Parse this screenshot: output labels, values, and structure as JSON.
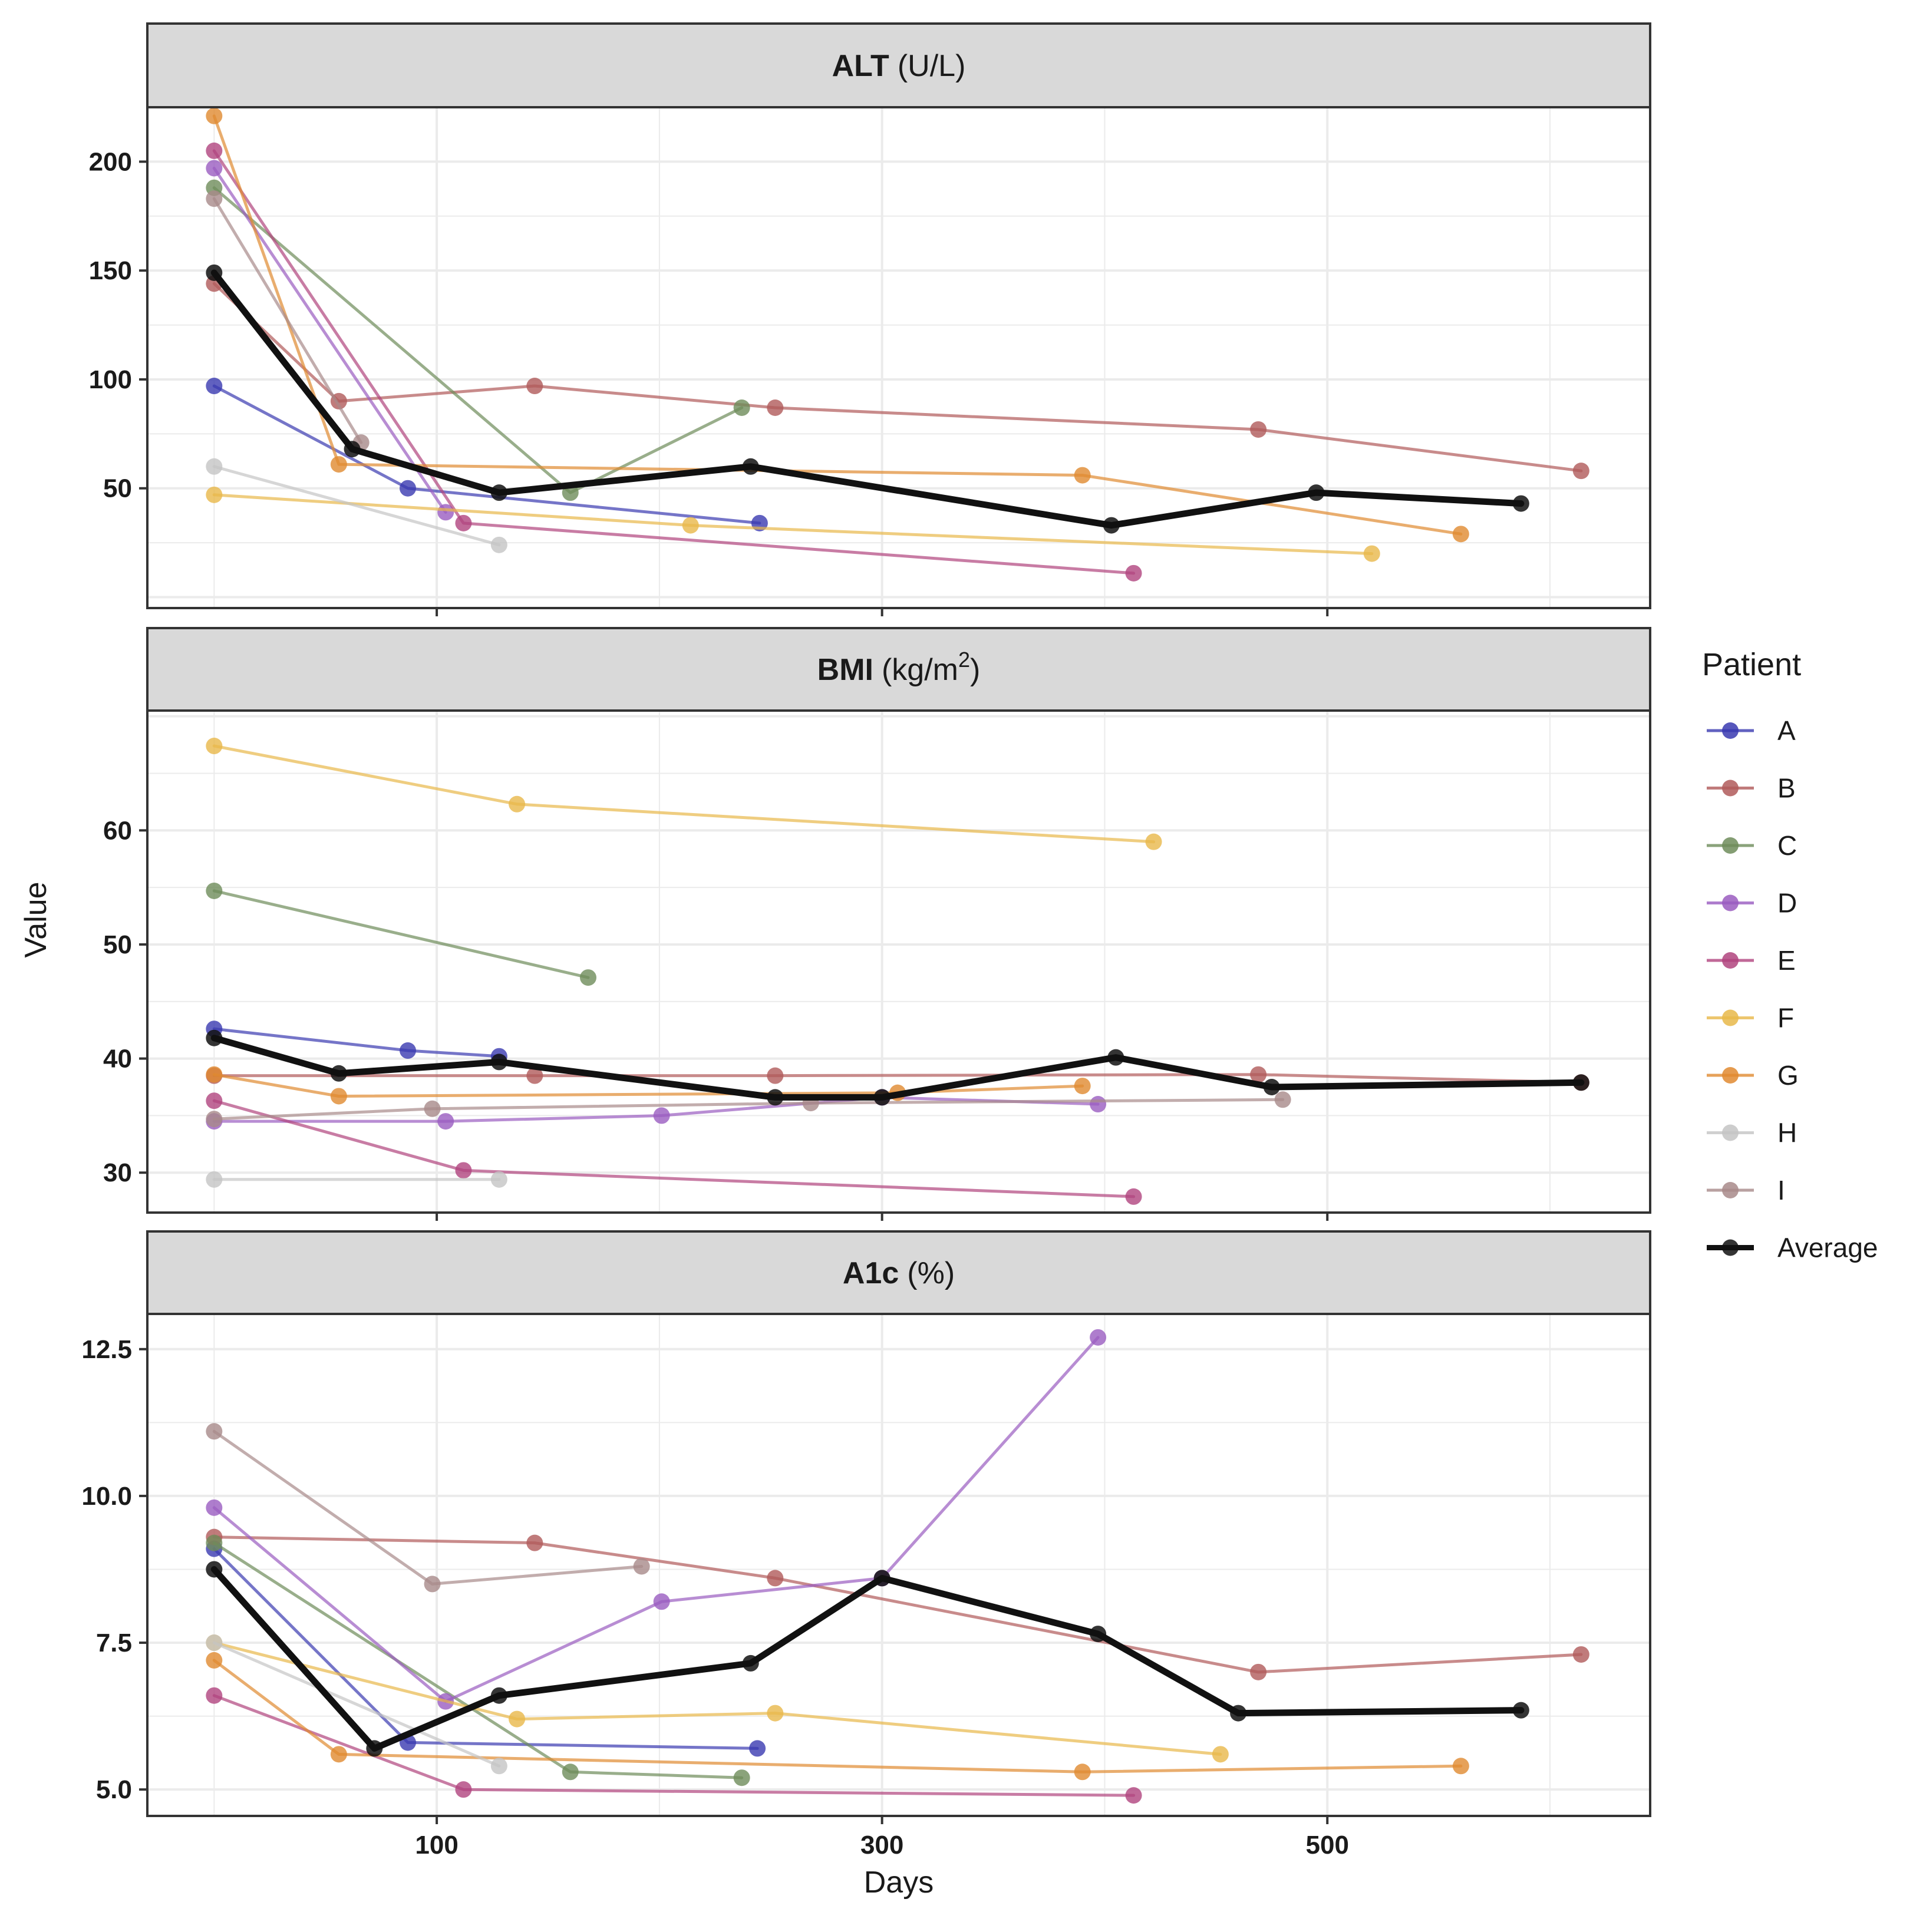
{
  "chart_data": {
    "type": "line",
    "xlabel": "Days",
    "ylabel": "Value",
    "xlim": [
      -30,
      645
    ],
    "x_ticks": [
      100,
      300,
      500
    ],
    "x_tick_labels": [
      "100",
      "300",
      "500"
    ],
    "legend": {
      "title": "Patient",
      "position": "right",
      "entries": [
        "A",
        "B",
        "C",
        "D",
        "E",
        "F",
        "G",
        "H",
        "I",
        "Average"
      ]
    },
    "colors": {
      "A": "#3a3ab0",
      "B": "#b05a5a",
      "C": "#6e8c5a",
      "D": "#9a5cc0",
      "E": "#b0447e",
      "F": "#e8b84a",
      "G": "#e08a30",
      "H": "#c4c4c4",
      "I": "#a88a8a",
      "Average": "#111111"
    },
    "panels": [
      {
        "name": "ALT",
        "title_bold": "ALT",
        "title_unit": "(U/L)",
        "ylim": [
          -5,
          225
        ],
        "y_ticks": [
          50,
          100,
          150,
          200
        ],
        "y_tick_labels": [
          "50",
          "100",
          "150",
          "200"
        ],
        "series": [
          {
            "name": "A",
            "x": [
              0,
              87,
              245
            ],
            "y": [
              97,
              50,
              34
            ]
          },
          {
            "name": "B",
            "x": [
              0,
              56,
              144,
              252,
              469,
              614
            ],
            "y": [
              144,
              90,
              97,
              87,
              77,
              58
            ]
          },
          {
            "name": "C",
            "x": [
              0,
              160,
              237
            ],
            "y": [
              188,
              48,
              87
            ]
          },
          {
            "name": "D",
            "x": [
              0,
              104
            ],
            "y": [
              197,
              39
            ]
          },
          {
            "name": "E",
            "x": [
              0,
              112,
              413
            ],
            "y": [
              205,
              34,
              11
            ]
          },
          {
            "name": "F",
            "x": [
              0,
              214,
              520
            ],
            "y": [
              47,
              33,
              20
            ]
          },
          {
            "name": "G",
            "x": [
              0,
              56,
              390,
              560
            ],
            "y": [
              221,
              61,
              56,
              29
            ]
          },
          {
            "name": "H",
            "x": [
              0,
              128
            ],
            "y": [
              60,
              24
            ]
          },
          {
            "name": "I",
            "x": [
              0,
              66
            ],
            "y": [
              183,
              71
            ]
          },
          {
            "name": "Average",
            "x": [
              0,
              62,
              128,
              241,
              403,
              495,
              587
            ],
            "y": [
              149,
              68,
              48,
              60,
              33,
              48,
              43
            ]
          }
        ]
      },
      {
        "name": "BMI",
        "title_bold": "BMI",
        "title_unit": "(kg/m",
        "title_sup": "2",
        "title_close": ")",
        "ylim": [
          26.5,
          70.5
        ],
        "y_ticks": [
          30,
          40,
          50,
          60
        ],
        "y_tick_labels": [
          "30",
          "40",
          "50",
          "60"
        ],
        "series": [
          {
            "name": "A",
            "x": [
              0,
              87,
              128
            ],
            "y": [
              42.6,
              40.7,
              40.2
            ]
          },
          {
            "name": "B",
            "x": [
              0,
              144,
              252,
              469,
              614
            ],
            "y": [
              38.5,
              38.5,
              38.5,
              38.6,
              37.9
            ]
          },
          {
            "name": "C",
            "x": [
              0,
              168
            ],
            "y": [
              54.7,
              47.1
            ]
          },
          {
            "name": "D",
            "x": [
              0,
              104,
              201,
              300,
              397
            ],
            "y": [
              34.5,
              34.5,
              35.0,
              36.6,
              36.0
            ]
          },
          {
            "name": "E",
            "x": [
              0,
              112,
              413
            ],
            "y": [
              36.3,
              30.2,
              27.9
            ]
          },
          {
            "name": "F",
            "x": [
              0,
              136,
              422
            ],
            "y": [
              67.4,
              62.3,
              59.0
            ]
          },
          {
            "name": "G",
            "x": [
              0,
              56,
              307,
              390
            ],
            "y": [
              38.6,
              36.7,
              37.0,
              37.6
            ]
          },
          {
            "name": "H",
            "x": [
              0,
              128
            ],
            "y": [
              29.4,
              29.4
            ]
          },
          {
            "name": "I",
            "x": [
              0,
              98,
              268,
              480
            ],
            "y": [
              34.7,
              35.6,
              36.1,
              36.4
            ]
          },
          {
            "name": "Average",
            "x": [
              0,
              56,
              128,
              252,
              300,
              405,
              475,
              614
            ],
            "y": [
              41.8,
              38.7,
              39.7,
              36.6,
              36.6,
              40.1,
              37.5,
              37.9
            ]
          }
        ]
      },
      {
        "name": "A1c",
        "title_bold": "A1c",
        "title_unit": "(%)",
        "ylim": [
          4.55,
          13.1
        ],
        "y_ticks": [
          5.0,
          7.5,
          10.0,
          12.5
        ],
        "y_tick_labels": [
          "5.0",
          "7.5",
          "10.0",
          "12.5"
        ],
        "series": [
          {
            "name": "A",
            "x": [
              0,
              87,
              244
            ],
            "y": [
              9.1,
              5.8,
              5.7
            ]
          },
          {
            "name": "B",
            "x": [
              0,
              144,
              252,
              469,
              614
            ],
            "y": [
              9.3,
              9.2,
              8.6,
              7.0,
              7.3
            ]
          },
          {
            "name": "C",
            "x": [
              0,
              160,
              237
            ],
            "y": [
              9.2,
              5.3,
              5.2
            ]
          },
          {
            "name": "D",
            "x": [
              0,
              104,
              201,
              300,
              397
            ],
            "y": [
              9.8,
              6.5,
              8.2,
              8.6,
              12.7
            ]
          },
          {
            "name": "E",
            "x": [
              0,
              112,
              413
            ],
            "y": [
              6.6,
              5.0,
              4.9
            ]
          },
          {
            "name": "F",
            "x": [
              0,
              136,
              252,
              452
            ],
            "y": [
              7.5,
              6.2,
              6.3,
              5.6
            ]
          },
          {
            "name": "G",
            "x": [
              0,
              56,
              390,
              560
            ],
            "y": [
              7.2,
              5.6,
              5.3,
              5.4
            ]
          },
          {
            "name": "H",
            "x": [
              0,
              128
            ],
            "y": [
              7.5,
              5.4
            ]
          },
          {
            "name": "I",
            "x": [
              0,
              98,
              192
            ],
            "y": [
              11.1,
              8.5,
              8.8
            ]
          },
          {
            "name": "Average",
            "x": [
              0,
              72,
              128,
              241,
              300,
              397,
              460,
              587
            ],
            "y": [
              8.75,
              5.7,
              6.6,
              7.15,
              8.6,
              7.65,
              6.3,
              6.35
            ]
          }
        ]
      }
    ]
  }
}
